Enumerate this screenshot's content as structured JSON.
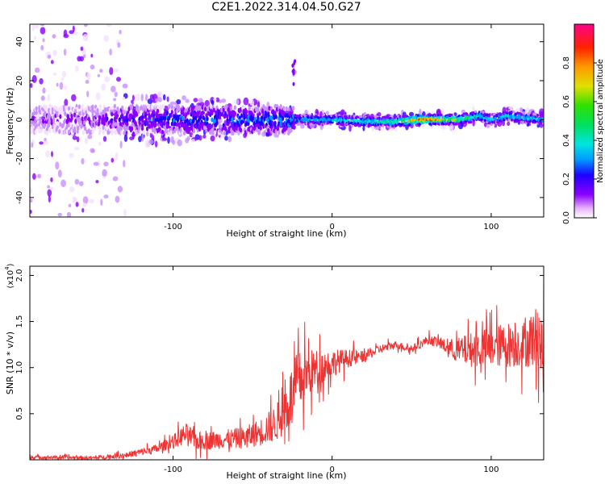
{
  "title": "C2E1.2022.314.04.50.G27",
  "chart_data": [
    {
      "type": "heatmap",
      "xlabel": "Height of straight line (km)",
      "ylabel": "Frequency (Hz)",
      "xlim": [
        -190,
        133
      ],
      "ylim": [
        -50,
        49
      ],
      "x_ticks": [
        -100,
        0,
        100
      ],
      "x_tick_labels": [
        "-100",
        "0",
        "100"
      ],
      "y_ticks": [
        -40,
        -20,
        0,
        20,
        40
      ],
      "y_tick_labels": [
        "-40",
        "-20",
        "0",
        "20",
        "40"
      ],
      "colorbar": {
        "label": "Normalized spectral amplitude",
        "range": [
          0,
          1
        ],
        "ticks": [
          0.0,
          0.2,
          0.4,
          0.6,
          0.8
        ],
        "tick_labels": [
          "0.0",
          "0.2",
          "0.4",
          "0.6",
          "0.8"
        ]
      },
      "ridge": {
        "x": [
          -190,
          -150,
          -130,
          -100,
          -60,
          -30,
          -24,
          -20,
          0,
          20,
          40,
          55,
          65,
          80,
          92,
          100,
          110,
          120,
          133
        ],
        "frequency": [
          0,
          0,
          0,
          0,
          0,
          0,
          0,
          0,
          0,
          -1,
          -1,
          0,
          0,
          0,
          2,
          0,
          2,
          1,
          0
        ],
        "peak_amplitude": [
          0.15,
          0.2,
          0.3,
          0.4,
          0.4,
          0.45,
          0.5,
          0.5,
          0.55,
          0.6,
          0.65,
          0.95,
          0.95,
          0.7,
          0.6,
          0.55,
          0.6,
          0.55,
          0.5
        ]
      },
      "grid": false
    },
    {
      "type": "line",
      "xlabel": "Height of straight line (km)",
      "ylabel": "SNR (10 * v/v)",
      "y_multiplier": "(x10",
      "y_multiplier_exp": "4",
      "series_color": "#ee3333",
      "xlim": [
        -190,
        133
      ],
      "ylim": [
        0,
        2.1
      ],
      "x_ticks": [
        -100,
        0,
        100
      ],
      "x_tick_labels": [
        "-100",
        "0",
        "100"
      ],
      "y_ticks": [
        0.5,
        1.0,
        1.5,
        2.0
      ],
      "y_tick_labels": [
        "0.5",
        "1.0",
        "1.5",
        "2.0"
      ],
      "series": [
        {
          "x": [
            -190,
            -150,
            -130,
            -110,
            -100,
            -92,
            -85,
            -70,
            -55,
            -45,
            -35,
            -28,
            -22,
            -18,
            -14,
            -10,
            -5,
            0,
            10,
            20,
            30,
            40,
            50,
            60,
            66,
            72,
            80,
            90,
            100,
            110,
            120,
            125,
            130,
            133
          ],
          "y": [
            0.03,
            0.02,
            0.05,
            0.12,
            0.2,
            0.28,
            0.2,
            0.22,
            0.24,
            0.3,
            0.4,
            0.6,
            0.82,
            0.9,
            0.95,
            0.98,
            1.02,
            1.05,
            1.1,
            1.12,
            1.2,
            1.25,
            1.2,
            1.3,
            1.28,
            1.22,
            1.18,
            1.2,
            1.22,
            1.25,
            1.25,
            1.3,
            1.35,
            1.1
          ],
          "noise": [
            0.02,
            0.02,
            0.03,
            0.05,
            0.07,
            0.12,
            0.1,
            0.1,
            0.12,
            0.15,
            0.2,
            0.3,
            0.35,
            0.3,
            0.25,
            0.22,
            0.18,
            0.15,
            0.1,
            0.06,
            0.05,
            0.04,
            0.04,
            0.05,
            0.06,
            0.08,
            0.15,
            0.2,
            0.22,
            0.25,
            0.25,
            0.3,
            0.35,
            0.4
          ]
        }
      ],
      "grid": false
    }
  ]
}
